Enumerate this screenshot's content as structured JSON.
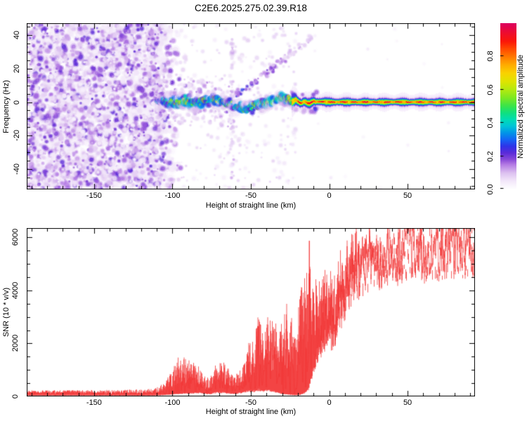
{
  "figure": {
    "title": "C2E6.2025.275.02.39.R18",
    "background": "#ffffff",
    "frame_color": "#000000"
  },
  "chart_data": [
    {
      "type": "heatmap",
      "title": "C2E6.2025.275.02.39.R18",
      "xlabel": "Height of straight line (km)",
      "ylabel": "Frequency (Hz)",
      "xlim": [
        -193,
        93
      ],
      "ylim": [
        -52,
        47
      ],
      "xticks": [
        -150,
        -100,
        -50,
        0,
        50
      ],
      "yticks": [
        -40,
        -20,
        0,
        20,
        40
      ],
      "x_minor_step": 10,
      "y_minor_step": 5,
      "grid": false,
      "seed": 1337,
      "colorbar": {
        "label": "Normalized spectral amplitude",
        "ticks": [
          "0.0",
          "0.2",
          "0.4",
          "0.6",
          "0.8"
        ],
        "tick_values": [
          0,
          0.2,
          0.4,
          0.6,
          0.8
        ],
        "range": [
          0,
          1
        ]
      },
      "colormap": [
        [
          0.0,
          "#ffffff"
        ],
        [
          0.05,
          "#f3e8fa"
        ],
        [
          0.1,
          "#dcc0f0"
        ],
        [
          0.15,
          "#b47ae4"
        ],
        [
          0.18,
          "#8a4ad8"
        ],
        [
          0.22,
          "#5b2bd8"
        ],
        [
          0.26,
          "#2f34e8"
        ],
        [
          0.3,
          "#1465f5"
        ],
        [
          0.34,
          "#0095e8"
        ],
        [
          0.38,
          "#00c4d8"
        ],
        [
          0.42,
          "#00dcb4"
        ],
        [
          0.46,
          "#10e080"
        ],
        [
          0.5,
          "#38e44c"
        ],
        [
          0.55,
          "#7ce822"
        ],
        [
          0.6,
          "#b4ea10"
        ],
        [
          0.65,
          "#e0e400"
        ],
        [
          0.7,
          "#fad200"
        ],
        [
          0.75,
          "#ffab00"
        ],
        [
          0.8,
          "#ff7700"
        ],
        [
          0.85,
          "#ff4400"
        ],
        [
          0.89,
          "#fb1708"
        ],
        [
          0.94,
          "#ee0d2e"
        ],
        [
          1.0,
          "#dc0060"
        ]
      ],
      "features": {
        "noise_field": {
          "x_range": [
            -193,
            -94
          ],
          "x_full_until": -110,
          "count": 3200,
          "halo_count": 1300,
          "amp_range": [
            0.03,
            0.22
          ]
        },
        "scatter": {
          "mid_count": 260,
          "ring_count": 150,
          "right_count": 20
        },
        "vertical_streak": {
          "x": -62,
          "spread": 1.4,
          "count": 60,
          "f_range": [
            -46,
            42
          ]
        },
        "diagonal_streak": {
          "from": [
            -59,
            4
          ],
          "to": [
            -10,
            39
          ],
          "count": 85
        },
        "stripe_start": -24,
        "stripe_layers": [
          [
            4.8,
            0.035
          ],
          [
            3.4,
            0.06
          ],
          [
            2.5,
            0.14
          ],
          [
            2.0,
            0.24
          ],
          [
            1.6,
            0.35
          ],
          [
            1.28,
            0.47
          ],
          [
            1.0,
            0.58
          ],
          [
            0.72,
            0.68
          ],
          [
            0.4,
            -1
          ]
        ],
        "band_centerline": [
          [
            -110,
            0.5,
            0.45,
            3.5
          ],
          [
            -106,
            1,
            0.55,
            4
          ],
          [
            -102,
            0.3,
            0.7,
            4.2
          ],
          [
            -98,
            -0.5,
            0.75,
            4.3
          ],
          [
            -94,
            0.5,
            0.8,
            4.5
          ],
          [
            -90,
            1,
            0.72,
            4.5
          ],
          [
            -86,
            -0.5,
            0.75,
            4.4
          ],
          [
            -82,
            0,
            0.7,
            4.2
          ],
          [
            -78,
            1,
            0.65,
            4.1
          ],
          [
            -74,
            1.5,
            0.7,
            4.2
          ],
          [
            -70,
            0.5,
            0.7,
            4.2
          ],
          [
            -66,
            -0.5,
            0.65,
            4.0
          ],
          [
            -62,
            -1.5,
            0.55,
            4.0
          ],
          [
            -58,
            -3.5,
            0.62,
            4.2
          ],
          [
            -54,
            -4.5,
            0.68,
            4.3
          ],
          [
            -50,
            -3.5,
            0.7,
            4.2
          ],
          [
            -46,
            -2,
            0.72,
            4.2
          ],
          [
            -42,
            -1,
            0.75,
            4.0
          ],
          [
            -38,
            0,
            0.75,
            3.8
          ],
          [
            -34,
            1.5,
            0.8,
            3.6
          ],
          [
            -30,
            2.5,
            0.82,
            3.4
          ],
          [
            -26,
            1.5,
            0.85,
            3.2
          ],
          [
            -22,
            0.5,
            0.88,
            2.8
          ],
          [
            -18,
            0,
            0.92,
            2.5
          ],
          [
            -14,
            -0.5,
            0.95,
            2.2
          ],
          [
            -10,
            0.2,
            0.96,
            2.1
          ],
          [
            -5,
            0.3,
            0.94,
            2.0
          ],
          [
            0,
            0,
            0.97,
            1.9
          ],
          [
            10,
            0,
            0.95,
            1.85
          ],
          [
            20,
            0,
            0.98,
            1.8
          ],
          [
            30,
            0,
            0.94,
            1.8
          ],
          [
            40,
            0,
            0.98,
            1.8
          ],
          [
            50,
            0,
            0.95,
            1.8
          ],
          [
            60,
            0,
            0.98,
            1.8
          ],
          [
            70,
            0,
            0.94,
            1.8
          ],
          [
            80,
            0,
            0.98,
            1.8
          ],
          [
            93,
            0,
            0.96,
            1.8
          ]
        ]
      }
    },
    {
      "type": "line",
      "xlabel": "Height of straight line (km)",
      "ylabel": "SNR (10 * v/v)",
      "xlim": [
        -193,
        93
      ],
      "ylim": [
        0,
        6350
      ],
      "xticks": [
        -150,
        -100,
        -50,
        0,
        50
      ],
      "yticks": [
        0,
        2000,
        4000,
        6000
      ],
      "x_minor_step": 10,
      "y_minor_step": 500,
      "grid": false,
      "color": "#f23535",
      "seed": 777,
      "envelope": [
        [
          -193,
          40,
          230
        ],
        [
          -160,
          40,
          230
        ],
        [
          -130,
          40,
          250
        ],
        [
          -112,
          40,
          280
        ],
        [
          -105,
          60,
          500
        ],
        [
          -100,
          80,
          1000
        ],
        [
          -96,
          100,
          1500
        ],
        [
          -92,
          120,
          1450
        ],
        [
          -88,
          120,
          1300
        ],
        [
          -84,
          150,
          1250
        ],
        [
          -80,
          100,
          800
        ],
        [
          -76,
          100,
          700
        ],
        [
          -72,
          150,
          1300
        ],
        [
          -68,
          150,
          1350
        ],
        [
          -64,
          120,
          1000
        ],
        [
          -60,
          100,
          800
        ],
        [
          -56,
          150,
          1100
        ],
        [
          -52,
          200,
          1900
        ],
        [
          -48,
          200,
          2400
        ],
        [
          -45,
          250,
          3000
        ],
        [
          -42,
          200,
          2300
        ],
        [
          -39,
          250,
          3100
        ],
        [
          -36,
          200,
          3300
        ],
        [
          -33,
          150,
          2700
        ],
        [
          -30,
          100,
          3000
        ],
        [
          -27,
          80,
          3700
        ],
        [
          -24,
          60,
          3000
        ],
        [
          -21,
          50,
          2400
        ],
        [
          -18,
          80,
          4300
        ],
        [
          -15,
          150,
          4600
        ],
        [
          -13,
          300,
          5900
        ],
        [
          -11,
          800,
          4300
        ],
        [
          -8,
          1500,
          4400
        ],
        [
          -5,
          1800,
          4500
        ],
        [
          -2,
          2200,
          4700
        ],
        [
          0,
          2400,
          4600
        ],
        [
          2,
          2000,
          4400
        ],
        [
          5,
          2600,
          4900
        ],
        [
          8,
          3200,
          5100
        ],
        [
          11,
          3600,
          5300
        ],
        [
          14,
          4000,
          5600
        ],
        [
          17,
          4300,
          5700
        ],
        [
          20,
          4600,
          5600
        ],
        [
          24,
          4800,
          5700
        ],
        [
          28,
          5000,
          5800
        ],
        [
          32,
          4600,
          5500
        ],
        [
          36,
          5000,
          5700
        ],
        [
          40,
          5100,
          5800
        ],
        [
          45,
          5200,
          5800
        ],
        [
          50,
          5300,
          5900
        ],
        [
          55,
          5300,
          5900
        ],
        [
          60,
          5300,
          6000
        ],
        [
          65,
          5400,
          5800
        ],
        [
          70,
          5400,
          5900
        ],
        [
          75,
          5500,
          6100
        ],
        [
          80,
          5500,
          5900
        ],
        [
          85,
          5500,
          5950
        ],
        [
          90,
          5550,
          5900
        ],
        [
          93,
          5600,
          5900
        ]
      ]
    }
  ]
}
